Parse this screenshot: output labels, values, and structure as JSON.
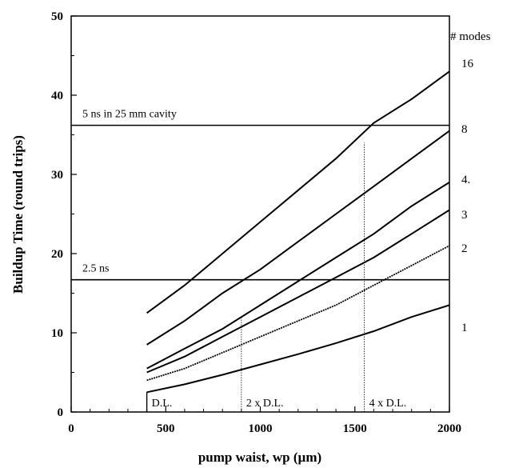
{
  "chart_data": {
    "type": "line",
    "title": "",
    "xlabel": "pump waist, wp  (µm)",
    "ylabel": "Buildup Time (round trips)",
    "xlim": [
      0,
      2000
    ],
    "ylim": [
      0,
      50
    ],
    "x_ticks": [
      0,
      500,
      1000,
      1500,
      2000
    ],
    "y_ticks": [
      0,
      10,
      20,
      30,
      40,
      50
    ],
    "legend_title": "# modes",
    "series": [
      {
        "name": "16",
        "x": [
          400,
          600,
          800,
          1000,
          1200,
          1400,
          1600,
          1800,
          2000
        ],
        "y": [
          12.5,
          16.0,
          20.0,
          24.0,
          28.0,
          32.0,
          36.5,
          39.5,
          43.0
        ]
      },
      {
        "name": "8",
        "x": [
          400,
          600,
          800,
          1000,
          1200,
          1400,
          1600,
          1800,
          2000
        ],
        "y": [
          8.5,
          11.5,
          15.0,
          18.0,
          21.5,
          25.0,
          28.5,
          32.0,
          35.5
        ]
      },
      {
        "name": "4.",
        "x": [
          400,
          600,
          800,
          1000,
          1200,
          1400,
          1600,
          1800,
          2000
        ],
        "y": [
          5.5,
          8.0,
          10.5,
          13.5,
          16.5,
          19.5,
          22.5,
          26.0,
          29.0
        ]
      },
      {
        "name": "3",
        "x": [
          400,
          600,
          800,
          1000,
          1200,
          1400,
          1600,
          1800,
          2000
        ],
        "y": [
          5.0,
          7.0,
          9.5,
          12.0,
          14.5,
          17.0,
          19.5,
          22.5,
          25.5
        ]
      },
      {
        "name": "2",
        "x": [
          400,
          600,
          800,
          1000,
          1200,
          1400,
          1600,
          1800,
          2000
        ],
        "y": [
          4.0,
          5.5,
          7.5,
          9.5,
          11.5,
          13.5,
          16.0,
          18.5,
          21.0
        ]
      },
      {
        "name": "1",
        "x": [
          400,
          600,
          800,
          1000,
          1200,
          1400,
          1600,
          1800,
          2000
        ],
        "y": [
          2.5,
          3.5,
          4.7,
          6.0,
          7.3,
          8.7,
          10.2,
          12.0,
          13.5
        ]
      }
    ],
    "hlines": [
      {
        "y": 36.2,
        "label": "5 ns in 25 mm cavity"
      },
      {
        "y": 16.7,
        "label": "2.5 ns"
      }
    ],
    "vlines": [
      {
        "x": 400,
        "y_top": 2.5,
        "label": "D.L.",
        "style": "solid"
      },
      {
        "x": 900,
        "y_top": 12.0,
        "label": "2 x D.L.",
        "style": "dotted"
      },
      {
        "x": 1550,
        "y_top": 34.0,
        "label": "4 x D.L.",
        "style": "dotted"
      }
    ],
    "grid": false
  }
}
